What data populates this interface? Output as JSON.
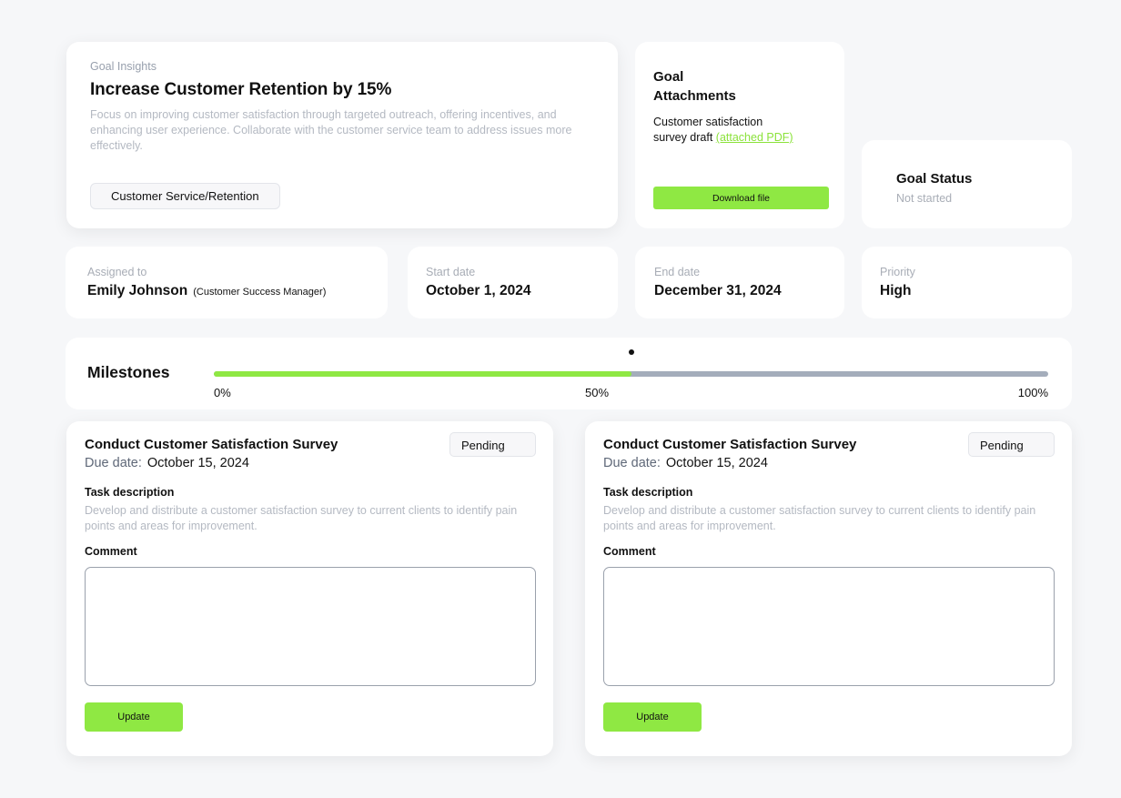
{
  "goal": {
    "eyebrow": "Goal Insights",
    "title": "Increase Customer Retention by 15%",
    "description": "Focus on improving customer satisfaction through targeted outreach, offering incentives, and enhancing user experience. Collaborate with the customer service team to address issues more effectively.",
    "tag": "Customer Service/Retention"
  },
  "attachments": {
    "heading_line1": "Goal",
    "heading_line2": "Attachments",
    "file_text_line1": "Customer satisfaction",
    "file_text_line2": "survey draft",
    "file_link": "(attached PDF)",
    "download_label": "Download file"
  },
  "status": {
    "heading": "Goal Status",
    "value": "Not started"
  },
  "info": {
    "assigned": {
      "label": "Assigned to",
      "name": "Emily Johnson",
      "role": "(Customer Success Manager)"
    },
    "start": {
      "label": "Start date",
      "value": "October 1, 2024"
    },
    "end": {
      "label": "End date",
      "value": "December 31, 2024"
    },
    "priority": {
      "label": "Priority",
      "value": "High"
    }
  },
  "milestones": {
    "title": "Milestones",
    "progress": 0.5,
    "labels": [
      "0%",
      "50%",
      "100%"
    ]
  },
  "tasks": [
    {
      "title": "Conduct Customer Satisfaction Survey",
      "status": "Pending",
      "due_label": "Due date:",
      "due_value": "October 15, 2024",
      "desc_label": "Task description",
      "description": "Develop and distribute a customer satisfaction survey to current clients to identify pain points and areas for improvement.",
      "comment_label": "Comment",
      "comment_value": "",
      "update_label": "Update"
    },
    {
      "title": "Conduct Customer Satisfaction Survey",
      "status": "Pending",
      "due_label": "Due date:",
      "due_value": "October 15, 2024",
      "desc_label": "Task description",
      "description": "Develop and distribute a customer satisfaction survey to current clients to identify pain points and areas for improvement.",
      "comment_label": "Comment",
      "comment_value": "",
      "update_label": "Update"
    }
  ],
  "colors": {
    "accent": "#8fe843",
    "track": "#a4adbb",
    "background": "#f6f7f9"
  }
}
